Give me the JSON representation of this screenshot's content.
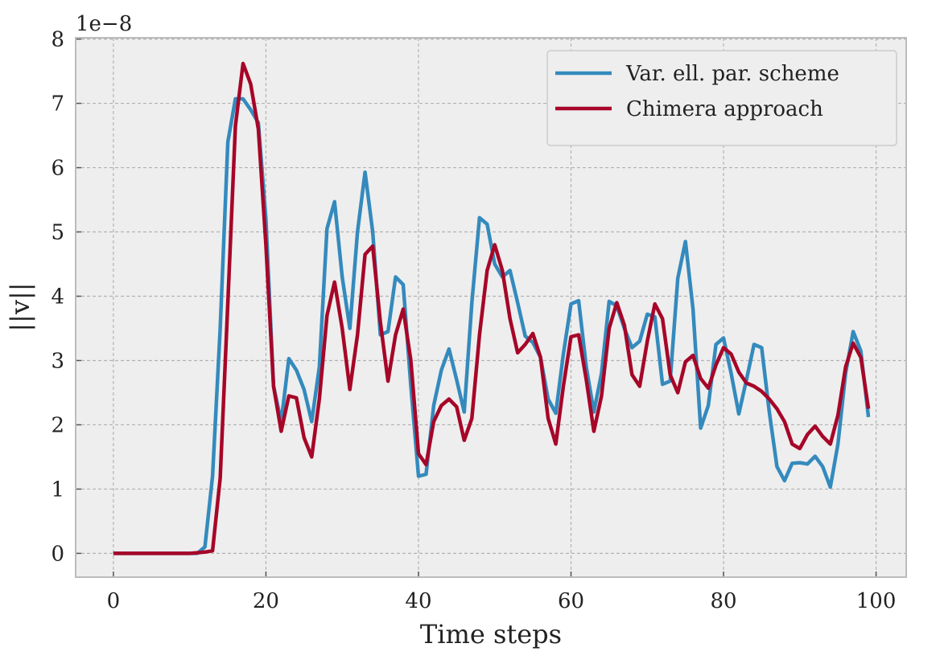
{
  "chart_data": {
    "type": "line",
    "xlabel": "Time steps",
    "ylabel": "||v||",
    "annotation": "1e−8",
    "x": [
      0,
      1,
      2,
      3,
      4,
      5,
      6,
      7,
      8,
      9,
      10,
      11,
      12,
      13,
      14,
      15,
      16,
      17,
      18,
      19,
      20,
      21,
      22,
      23,
      24,
      25,
      26,
      27,
      28,
      29,
      30,
      31,
      32,
      33,
      34,
      35,
      36,
      37,
      38,
      39,
      40,
      41,
      42,
      43,
      44,
      45,
      46,
      47,
      48,
      49,
      50,
      51,
      52,
      53,
      54,
      55,
      56,
      57,
      58,
      59,
      60,
      61,
      62,
      63,
      64,
      65,
      66,
      67,
      68,
      69,
      70,
      71,
      72,
      73,
      74,
      75,
      76,
      77,
      78,
      79,
      80,
      81,
      82,
      83,
      84,
      85,
      86,
      87,
      88,
      89,
      90,
      91,
      92,
      93,
      94,
      95,
      96,
      97,
      98,
      99
    ],
    "series": [
      {
        "name": "Var. ell. par. scheme",
        "color": "#348abd",
        "values": [
          0,
          0,
          0,
          0,
          0,
          0,
          0,
          0,
          0,
          0,
          0,
          0,
          0.1,
          1.2,
          3.5,
          6.4,
          7.07,
          7.07,
          6.9,
          6.7,
          5.2,
          2.6,
          2.05,
          3.03,
          2.85,
          2.55,
          2.05,
          2.9,
          5.05,
          5.47,
          4.3,
          3.5,
          5.0,
          5.93,
          5.0,
          3.4,
          3.45,
          4.3,
          4.18,
          2.6,
          1.2,
          1.23,
          2.3,
          2.85,
          3.18,
          2.7,
          2.2,
          3.9,
          5.22,
          5.12,
          4.5,
          4.3,
          4.4,
          3.9,
          3.38,
          3.28,
          3.05,
          2.4,
          2.18,
          3.1,
          3.88,
          3.93,
          2.9,
          2.2,
          2.8,
          3.92,
          3.85,
          3.5,
          3.2,
          3.3,
          3.72,
          3.68,
          2.63,
          2.68,
          4.28,
          4.85,
          3.8,
          1.95,
          2.3,
          3.25,
          3.35,
          2.8,
          2.17,
          2.7,
          3.25,
          3.2,
          2.2,
          1.35,
          1.13,
          1.4,
          1.41,
          1.39,
          1.51,
          1.35,
          1.03,
          1.7,
          2.8,
          3.45,
          3.15,
          2.12
        ]
      },
      {
        "name": "Chimera approach",
        "color": "#a60628",
        "values": [
          0,
          0,
          0,
          0,
          0,
          0,
          0,
          0,
          0,
          0,
          0,
          0.01,
          0.02,
          0.04,
          1.17,
          3.9,
          6.65,
          7.62,
          7.3,
          6.6,
          4.8,
          2.6,
          1.9,
          2.45,
          2.42,
          1.8,
          1.5,
          2.4,
          3.7,
          4.22,
          3.5,
          2.55,
          3.4,
          4.65,
          4.78,
          3.6,
          2.68,
          3.4,
          3.8,
          3.0,
          1.55,
          1.38,
          2.05,
          2.3,
          2.4,
          2.28,
          1.76,
          2.1,
          3.4,
          4.4,
          4.8,
          4.4,
          3.65,
          3.12,
          3.25,
          3.42,
          3.05,
          2.1,
          1.7,
          2.6,
          3.37,
          3.4,
          2.7,
          1.9,
          2.45,
          3.5,
          3.9,
          3.55,
          2.78,
          2.6,
          3.3,
          3.88,
          3.65,
          2.78,
          2.5,
          2.98,
          3.08,
          2.72,
          2.57,
          2.93,
          3.2,
          3.1,
          2.82,
          2.65,
          2.6,
          2.52,
          2.4,
          2.25,
          2.05,
          1.7,
          1.63,
          1.85,
          1.98,
          1.82,
          1.7,
          2.15,
          2.9,
          3.27,
          3.05,
          2.25
        ]
      }
    ],
    "xlim": [
      -4.95,
      103.95
    ],
    "xticks": [
      0,
      20,
      40,
      60,
      80,
      100
    ],
    "ylim": [
      -0.37,
      8.02
    ],
    "yticks": [
      0,
      1,
      2,
      3,
      4,
      5,
      6,
      7,
      8
    ],
    "grid": true,
    "legend": "upper right"
  }
}
